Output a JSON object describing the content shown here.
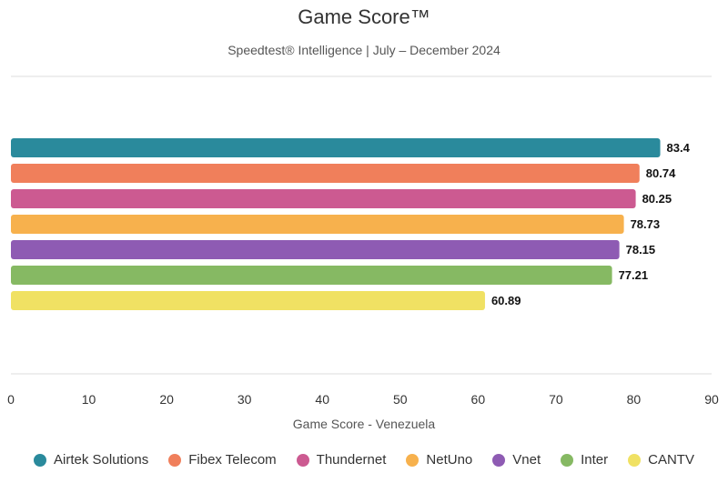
{
  "chart_data": {
    "type": "bar",
    "orientation": "horizontal",
    "title": "Game Score™",
    "subtitle": "Speedtest® Intelligence | July – December 2024",
    "xlabel": "Game Score - Venezuela",
    "xlim": [
      0,
      90
    ],
    "xticks": [
      0,
      10,
      20,
      30,
      40,
      50,
      60,
      70,
      80,
      90
    ],
    "legend_position": "bottom",
    "series": [
      {
        "name": "Airtek Solutions",
        "value": 83.4,
        "label": "83.4",
        "color": "#2a8a9c"
      },
      {
        "name": "Fibex Telecom",
        "value": 80.74,
        "label": "80.74",
        "color": "#f07f5b"
      },
      {
        "name": "Thundernet",
        "value": 80.25,
        "label": "80.25",
        "color": "#cc5a91"
      },
      {
        "name": "NetUno",
        "value": 78.73,
        "label": "78.73",
        "color": "#f7b14d"
      },
      {
        "name": "Vnet",
        "value": 78.15,
        "label": "78.15",
        "color": "#8e5bb3"
      },
      {
        "name": "Inter",
        "value": 77.21,
        "label": "77.21",
        "color": "#86b963"
      },
      {
        "name": "CANTV",
        "value": 60.89,
        "label": "60.89",
        "color": "#f0e163"
      }
    ]
  }
}
